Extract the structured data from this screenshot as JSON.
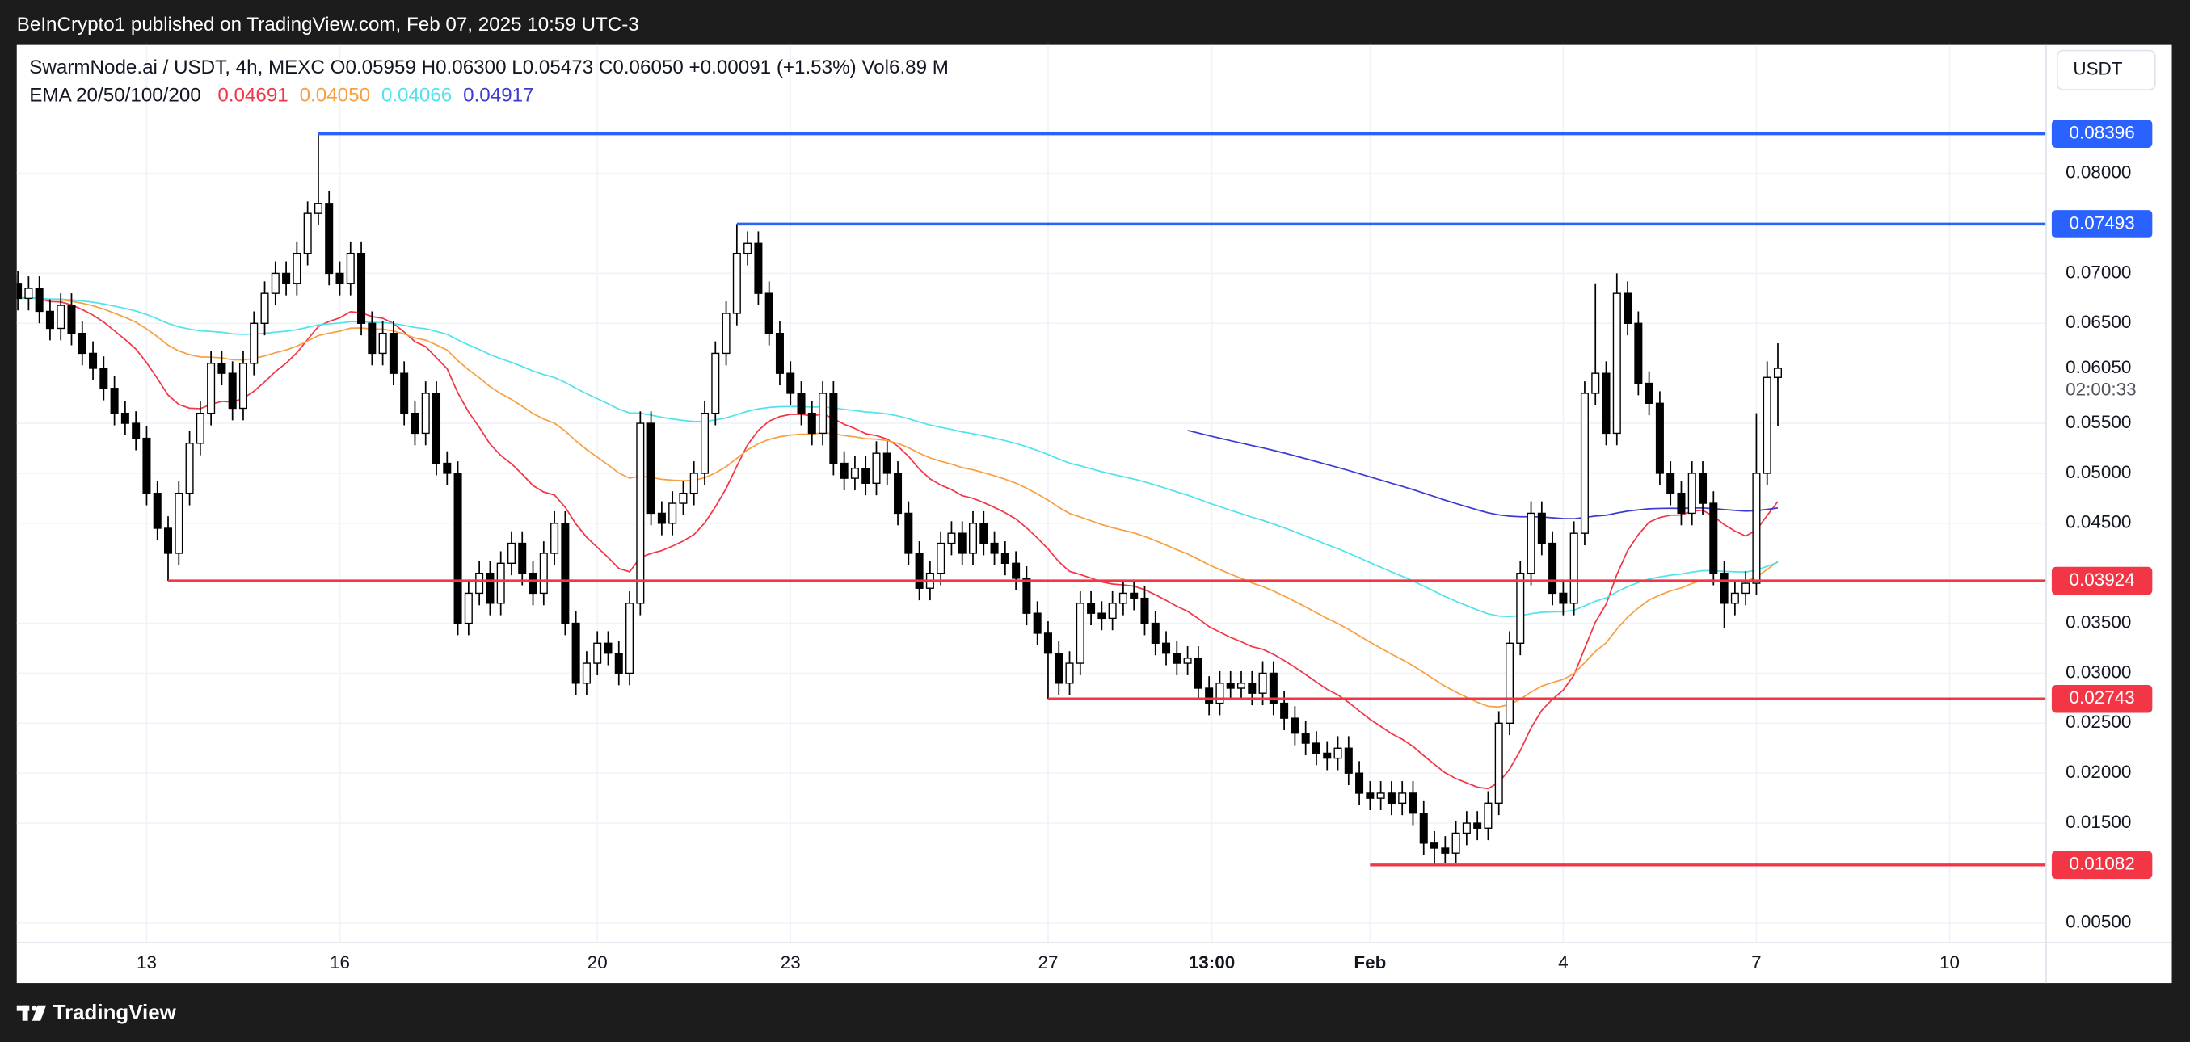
{
  "header": {
    "publisher": "BeInCrypto1 published on TradingView.com, Feb 07, 2025 10:59 UTC-3"
  },
  "footer": {
    "brand": "TradingView"
  },
  "chart_data": {
    "type": "candlestick",
    "symbol": "SwarmNode.ai / USDT, 4h, MEXC",
    "info": [
      {
        "label": "O",
        "value": "0.05959"
      },
      {
        "label": "H",
        "value": "0.06300"
      },
      {
        "label": "L",
        "value": "0.05473"
      },
      {
        "label": "C",
        "value": "0.06050"
      }
    ],
    "change": "+0.00091 (+1.53%)",
    "volume": {
      "label": "Vol",
      "value": "6.89 M"
    },
    "ema_title": "EMA 20/50/100/200",
    "emas": [
      {
        "period": 20,
        "color": "#f23645",
        "last": "0.04691"
      },
      {
        "period": 50,
        "color": "#f7a043",
        "last": "0.04050"
      },
      {
        "period": 100,
        "color": "#4fe3ee",
        "last": "0.04066"
      },
      {
        "period": 200,
        "color": "#3c3cd2",
        "last": "0.04917"
      }
    ],
    "currency": "USDT",
    "up_color": "#ffffff",
    "down_color": "#000000",
    "wick_color": "#000000",
    "x": [
      11,
      11.1667,
      11.3333,
      11.5,
      11.6667,
      11.8333,
      12,
      12.1667,
      12.3333,
      12.5,
      12.6667,
      12.8333,
      13,
      13.1667,
      13.3333,
      13.5,
      13.6667,
      13.8333,
      14,
      14.1667,
      14.3333,
      14.5,
      14.6667,
      14.8333,
      15,
      15.1667,
      15.3333,
      15.5,
      15.6667,
      15.8333,
      16,
      16.1667,
      16.3333,
      16.5,
      16.6667,
      16.8333,
      17,
      17.1667,
      17.3333,
      17.5,
      17.6667,
      17.8333,
      18,
      18.1667,
      18.3333,
      18.5,
      18.6667,
      18.8333,
      19,
      19.1667,
      19.3333,
      19.5,
      19.6667,
      19.8333,
      20,
      20.1667,
      20.3333,
      20.5,
      20.6667,
      20.8333,
      21,
      21.1667,
      21.3333,
      21.5,
      21.6667,
      21.8333,
      22,
      22.1667,
      22.3333,
      22.5,
      22.6667,
      22.8333,
      23,
      23.1667,
      23.3333,
      23.5,
      23.6667,
      23.8333,
      24,
      24.1667,
      24.3333,
      24.5,
      24.6667,
      24.8333,
      25,
      25.1667,
      25.3333,
      25.5,
      25.6667,
      25.8333,
      26,
      26.1667,
      26.3333,
      26.5,
      26.6667,
      26.8333,
      27,
      27.1667,
      27.3333,
      27.5,
      27.6667,
      27.8333,
      28,
      28.1667,
      28.3333,
      28.5,
      28.6667,
      28.8333,
      29,
      29.1667,
      29.3333,
      29.5,
      29.6667,
      29.8333,
      30,
      30.1667,
      30.3333,
      30.5,
      30.6667,
      30.8333,
      31,
      31.1667,
      31.3333,
      31.5,
      31.6667,
      31.8333,
      32,
      32.1667,
      32.3333,
      32.5,
      32.6667,
      32.8333,
      33,
      33.1667,
      33.3333,
      33.5,
      33.6667,
      33.8333,
      34,
      34.1667,
      34.3333,
      34.5,
      34.6667,
      34.8333,
      35,
      35.1667,
      35.3333,
      35.5,
      35.6667,
      35.8333,
      36,
      36.1667,
      36.3333,
      36.5,
      36.6667,
      36.8333,
      37,
      37.1667,
      37.3333,
      37.5,
      37.6667,
      37.8333,
      38,
      38.1667,
      38.3333
    ],
    "candles": [
      [
        0.069,
        0.0702,
        0.0663,
        0.0675
      ],
      [
        0.0675,
        0.0697,
        0.0663,
        0.0685
      ],
      [
        0.0685,
        0.0697,
        0.065,
        0.0662
      ],
      [
        0.0662,
        0.0674,
        0.0633,
        0.0645
      ],
      [
        0.0645,
        0.068,
        0.0633,
        0.0668
      ],
      [
        0.0668,
        0.068,
        0.0628,
        0.064
      ],
      [
        0.064,
        0.0652,
        0.0608,
        0.062
      ],
      [
        0.062,
        0.0632,
        0.0593,
        0.0605
      ],
      [
        0.0605,
        0.0617,
        0.0573,
        0.0585
      ],
      [
        0.0585,
        0.0597,
        0.0548,
        0.056
      ],
      [
        0.056,
        0.0572,
        0.0538,
        0.055
      ],
      [
        0.055,
        0.0562,
        0.0523,
        0.0535
      ],
      [
        0.0535,
        0.0547,
        0.0468,
        0.048
      ],
      [
        0.048,
        0.0492,
        0.0433,
        0.0445
      ],
      [
        0.0445,
        0.0457,
        0.03924,
        0.042
      ],
      [
        0.042,
        0.0492,
        0.0408,
        0.048
      ],
      [
        0.048,
        0.0542,
        0.0468,
        0.053
      ],
      [
        0.053,
        0.0572,
        0.0518,
        0.056
      ],
      [
        0.056,
        0.0622,
        0.0548,
        0.061
      ],
      [
        0.061,
        0.0622,
        0.0588,
        0.06
      ],
      [
        0.06,
        0.0612,
        0.0553,
        0.0565
      ],
      [
        0.0565,
        0.0622,
        0.0553,
        0.061
      ],
      [
        0.061,
        0.0662,
        0.0598,
        0.065
      ],
      [
        0.065,
        0.0692,
        0.0638,
        0.068
      ],
      [
        0.068,
        0.0712,
        0.0668,
        0.07
      ],
      [
        0.07,
        0.0712,
        0.0678,
        0.069
      ],
      [
        0.069,
        0.0732,
        0.0678,
        0.072
      ],
      [
        0.072,
        0.0772,
        0.0708,
        0.076
      ],
      [
        0.076,
        0.08396,
        0.0748,
        0.077
      ],
      [
        0.077,
        0.0782,
        0.0688,
        0.07
      ],
      [
        0.07,
        0.0712,
        0.0678,
        0.069
      ],
      [
        0.069,
        0.0732,
        0.0678,
        0.072
      ],
      [
        0.072,
        0.0732,
        0.0638,
        0.065
      ],
      [
        0.065,
        0.0662,
        0.0608,
        0.062
      ],
      [
        0.062,
        0.0652,
        0.0608,
        0.064
      ],
      [
        0.064,
        0.0652,
        0.0588,
        0.06
      ],
      [
        0.06,
        0.0612,
        0.0548,
        0.056
      ],
      [
        0.056,
        0.0572,
        0.0528,
        0.054
      ],
      [
        0.054,
        0.0592,
        0.0528,
        0.058
      ],
      [
        0.058,
        0.0592,
        0.0498,
        0.051
      ],
      [
        0.051,
        0.0522,
        0.0488,
        0.05
      ],
      [
        0.05,
        0.0512,
        0.0338,
        0.035
      ],
      [
        0.035,
        0.0392,
        0.0338,
        0.038
      ],
      [
        0.038,
        0.0412,
        0.0368,
        0.04
      ],
      [
        0.04,
        0.0412,
        0.0358,
        0.037
      ],
      [
        0.037,
        0.0422,
        0.0358,
        0.041
      ],
      [
        0.041,
        0.0442,
        0.0398,
        0.043
      ],
      [
        0.043,
        0.0442,
        0.0388,
        0.04
      ],
      [
        0.04,
        0.0412,
        0.0368,
        0.038
      ],
      [
        0.038,
        0.0432,
        0.0368,
        0.042
      ],
      [
        0.042,
        0.0462,
        0.0408,
        0.045
      ],
      [
        0.045,
        0.0462,
        0.0338,
        0.035
      ],
      [
        0.035,
        0.0362,
        0.0278,
        0.029
      ],
      [
        0.029,
        0.0322,
        0.0278,
        0.031
      ],
      [
        0.031,
        0.0342,
        0.0298,
        0.033
      ],
      [
        0.033,
        0.0342,
        0.0308,
        0.032
      ],
      [
        0.032,
        0.0332,
        0.0288,
        0.03
      ],
      [
        0.03,
        0.0382,
        0.0288,
        0.037
      ],
      [
        0.037,
        0.0562,
        0.0358,
        0.055
      ],
      [
        0.055,
        0.0562,
        0.0448,
        0.046
      ],
      [
        0.046,
        0.0472,
        0.0438,
        0.045
      ],
      [
        0.045,
        0.0482,
        0.0438,
        0.047
      ],
      [
        0.047,
        0.0492,
        0.0458,
        0.048
      ],
      [
        0.048,
        0.0512,
        0.0468,
        0.05
      ],
      [
        0.05,
        0.0572,
        0.0488,
        0.056
      ],
      [
        0.056,
        0.0632,
        0.0548,
        0.062
      ],
      [
        0.062,
        0.0672,
        0.0608,
        0.066
      ],
      [
        0.066,
        0.07493,
        0.0648,
        0.072
      ],
      [
        0.072,
        0.0742,
        0.0708,
        0.073
      ],
      [
        0.073,
        0.0742,
        0.0668,
        0.068
      ],
      [
        0.068,
        0.0692,
        0.0628,
        0.064
      ],
      [
        0.064,
        0.0652,
        0.0588,
        0.06
      ],
      [
        0.06,
        0.0612,
        0.0568,
        0.058
      ],
      [
        0.058,
        0.0592,
        0.0548,
        0.056
      ],
      [
        0.056,
        0.0572,
        0.0528,
        0.054
      ],
      [
        0.054,
        0.0592,
        0.0528,
        0.058
      ],
      [
        0.058,
        0.0592,
        0.0498,
        0.051
      ],
      [
        0.051,
        0.0522,
        0.0483,
        0.0495
      ],
      [
        0.0495,
        0.0517,
        0.0483,
        0.0505
      ],
      [
        0.0505,
        0.0517,
        0.0478,
        0.049
      ],
      [
        0.049,
        0.0532,
        0.0478,
        0.052
      ],
      [
        0.052,
        0.0532,
        0.0488,
        0.05
      ],
      [
        0.05,
        0.0512,
        0.0448,
        0.046
      ],
      [
        0.046,
        0.0472,
        0.0408,
        0.042
      ],
      [
        0.042,
        0.0432,
        0.0373,
        0.0385
      ],
      [
        0.0385,
        0.0412,
        0.0373,
        0.04
      ],
      [
        0.04,
        0.0442,
        0.0388,
        0.043
      ],
      [
        0.043,
        0.0452,
        0.0418,
        0.044
      ],
      [
        0.044,
        0.0452,
        0.0408,
        0.042
      ],
      [
        0.042,
        0.0462,
        0.0408,
        0.045
      ],
      [
        0.045,
        0.0462,
        0.0418,
        0.043
      ],
      [
        0.043,
        0.0442,
        0.0408,
        0.042
      ],
      [
        0.042,
        0.0432,
        0.0398,
        0.041
      ],
      [
        0.041,
        0.0422,
        0.0383,
        0.0395
      ],
      [
        0.0395,
        0.0407,
        0.0348,
        0.036
      ],
      [
        0.036,
        0.0372,
        0.0328,
        0.034
      ],
      [
        0.034,
        0.0352,
        0.02743,
        0.032
      ],
      [
        0.032,
        0.0332,
        0.0278,
        0.029
      ],
      [
        0.029,
        0.0322,
        0.0278,
        0.031
      ],
      [
        0.031,
        0.0382,
        0.0298,
        0.037
      ],
      [
        0.037,
        0.0382,
        0.0348,
        0.036
      ],
      [
        0.036,
        0.0372,
        0.0343,
        0.0355
      ],
      [
        0.0355,
        0.0382,
        0.0343,
        0.037
      ],
      [
        0.037,
        0.0392,
        0.0358,
        0.038
      ],
      [
        0.038,
        0.0392,
        0.0363,
        0.0375
      ],
      [
        0.0375,
        0.0387,
        0.0338,
        0.035
      ],
      [
        0.035,
        0.0362,
        0.0318,
        0.033
      ],
      [
        0.033,
        0.0342,
        0.0308,
        0.032
      ],
      [
        0.032,
        0.0332,
        0.0298,
        0.031
      ],
      [
        0.031,
        0.0327,
        0.0298,
        0.0315
      ],
      [
        0.0315,
        0.0327,
        0.0273,
        0.0285
      ],
      [
        0.0285,
        0.0297,
        0.0258,
        0.027
      ],
      [
        0.027,
        0.0302,
        0.0258,
        0.029
      ],
      [
        0.029,
        0.0302,
        0.0273,
        0.0285
      ],
      [
        0.0285,
        0.0302,
        0.0273,
        0.029
      ],
      [
        0.029,
        0.0302,
        0.0268,
        0.028
      ],
      [
        0.028,
        0.0312,
        0.0268,
        0.03
      ],
      [
        0.03,
        0.0312,
        0.0258,
        0.027
      ],
      [
        0.027,
        0.0282,
        0.0243,
        0.0255
      ],
      [
        0.0255,
        0.0267,
        0.0228,
        0.024
      ],
      [
        0.024,
        0.0252,
        0.0218,
        0.023
      ],
      [
        0.023,
        0.0242,
        0.0208,
        0.022
      ],
      [
        0.022,
        0.0232,
        0.0203,
        0.0215
      ],
      [
        0.0215,
        0.0237,
        0.0203,
        0.0225
      ],
      [
        0.0225,
        0.0237,
        0.0188,
        0.02
      ],
      [
        0.02,
        0.0212,
        0.0168,
        0.018
      ],
      [
        0.018,
        0.0192,
        0.0163,
        0.0175
      ],
      [
        0.0175,
        0.0192,
        0.0163,
        0.018
      ],
      [
        0.018,
        0.0192,
        0.0158,
        0.017
      ],
      [
        0.017,
        0.0192,
        0.0158,
        0.018
      ],
      [
        0.018,
        0.0192,
        0.0148,
        0.016
      ],
      [
        0.016,
        0.0172,
        0.0118,
        0.013
      ],
      [
        0.013,
        0.0142,
        0.01082,
        0.0125
      ],
      [
        0.0125,
        0.0137,
        0.011,
        0.012
      ],
      [
        0.012,
        0.0152,
        0.011,
        0.014
      ],
      [
        0.014,
        0.0162,
        0.0128,
        0.015
      ],
      [
        0.015,
        0.0162,
        0.0133,
        0.0145
      ],
      [
        0.0145,
        0.0182,
        0.0133,
        0.017
      ],
      [
        0.017,
        0.0262,
        0.0158,
        0.025
      ],
      [
        0.025,
        0.0342,
        0.0238,
        0.033
      ],
      [
        0.033,
        0.0412,
        0.0318,
        0.04
      ],
      [
        0.04,
        0.0472,
        0.0388,
        0.046
      ],
      [
        0.046,
        0.0472,
        0.0418,
        0.043
      ],
      [
        0.043,
        0.0442,
        0.0368,
        0.038
      ],
      [
        0.038,
        0.0392,
        0.0358,
        0.037
      ],
      [
        0.037,
        0.0452,
        0.0358,
        0.044
      ],
      [
        0.044,
        0.0592,
        0.0428,
        0.058
      ],
      [
        0.058,
        0.069,
        0.0568,
        0.06
      ],
      [
        0.06,
        0.0612,
        0.0528,
        0.054
      ],
      [
        0.054,
        0.07,
        0.0528,
        0.068
      ],
      [
        0.068,
        0.0692,
        0.0638,
        0.065
      ],
      [
        0.065,
        0.0662,
        0.0578,
        0.059
      ],
      [
        0.059,
        0.0602,
        0.0558,
        0.057
      ],
      [
        0.057,
        0.0582,
        0.0488,
        0.05
      ],
      [
        0.05,
        0.0512,
        0.0468,
        0.048
      ],
      [
        0.048,
        0.0492,
        0.0448,
        0.046
      ],
      [
        0.046,
        0.0512,
        0.0448,
        0.05
      ],
      [
        0.05,
        0.0512,
        0.0458,
        0.047
      ],
      [
        0.047,
        0.0482,
        0.0388,
        0.04
      ],
      [
        0.04,
        0.0412,
        0.0345,
        0.037
      ],
      [
        0.037,
        0.0392,
        0.0358,
        0.038
      ],
      [
        0.038,
        0.0402,
        0.0368,
        0.039
      ],
      [
        0.039,
        0.056,
        0.0378,
        0.05
      ],
      [
        0.05,
        0.0612,
        0.0488,
        0.05959
      ],
      [
        0.05959,
        0.063,
        0.05473,
        0.0605
      ]
    ],
    "levels": [
      {
        "value": 0.08396,
        "x": 15.6667,
        "color": "#2962ff"
      },
      {
        "value": 0.07493,
        "x": 22.1667,
        "color": "#2962ff"
      },
      {
        "value": 0.03924,
        "x": 13.3333,
        "color": "#f23645"
      },
      {
        "value": 0.02743,
        "x": 27,
        "color": "#f23645"
      },
      {
        "value": 0.01082,
        "x": 32,
        "color": "#f23645"
      }
    ],
    "last_price": {
      "value": 0.0605,
      "label": "0.06050"
    },
    "countdown": "02:00:33",
    "xlim": [
      10.983,
      42.5
    ],
    "xticks": [
      13,
      16,
      20,
      23,
      27,
      {
        "value": 29.5417,
        "label": "13:00"
      },
      {
        "value": 32,
        "label": "Feb"
      },
      {
        "value": 35,
        "label": "4"
      },
      {
        "value": 38,
        "label": "7"
      },
      {
        "value": 41,
        "label": "10"
      }
    ],
    "ylim": [
      0.00305,
      0.09285
    ],
    "yticks": [
      {
        "value": 0.08,
        "label": "0.08000"
      },
      {
        "value": 0.07,
        "label": "0.07000"
      },
      {
        "value": 0.065,
        "label": "0.06500"
      },
      {
        "value": 0.055,
        "label": "0.05500"
      },
      {
        "value": 0.05,
        "label": "0.05000"
      },
      {
        "value": 0.045,
        "label": "0.04500"
      },
      {
        "value": 0.035,
        "label": "0.03500"
      },
      {
        "value": 0.03,
        "label": "0.03000"
      },
      {
        "value": 0.025,
        "label": "0.02500"
      },
      {
        "value": 0.02,
        "label": "0.02000"
      },
      {
        "value": 0.015,
        "label": "0.01500"
      },
      {
        "value": 0.005,
        "label": "0.00500"
      }
    ],
    "grid": true
  }
}
